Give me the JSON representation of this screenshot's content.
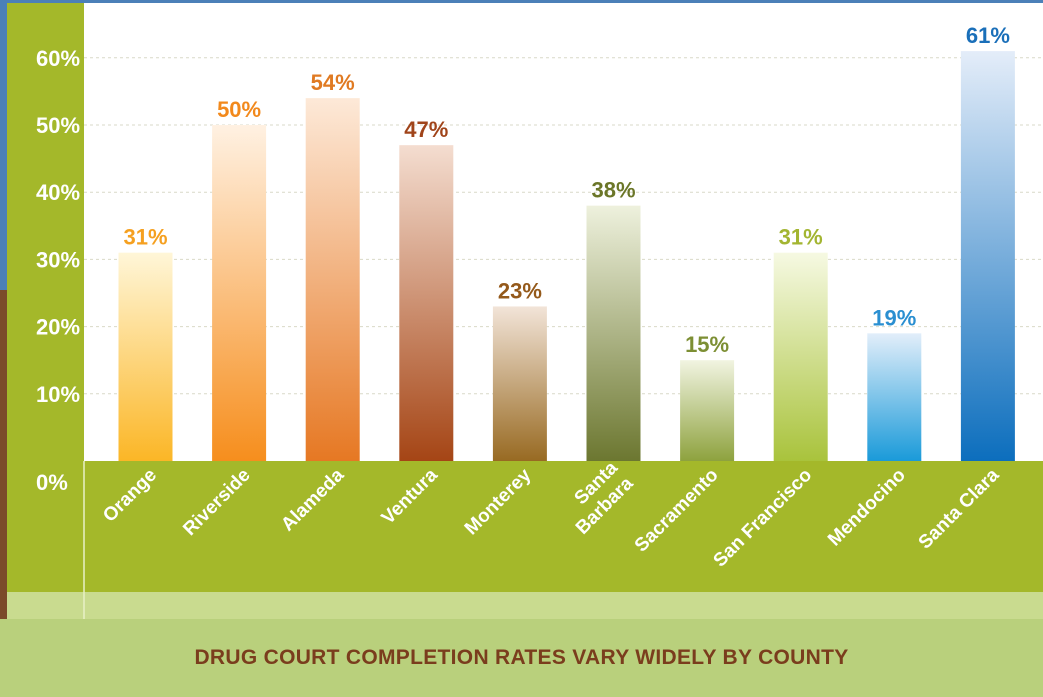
{
  "chart_data": {
    "type": "bar",
    "title": "DRUG COURT COMPLETION RATES VARY WIDELY BY COUNTY",
    "xlabel": "",
    "ylabel": "",
    "ylim": [
      0,
      65
    ],
    "yticks": [
      "0%",
      "10%",
      "20%",
      "30%",
      "40%",
      "50%",
      "60%"
    ],
    "categories": [
      "Orange",
      "Riverside",
      "Alameda",
      "Ventura",
      "Monterey",
      "Santa Barbara",
      "Sacramento",
      "San Francisco",
      "Mendocino",
      "Santa Clara"
    ],
    "values": [
      31,
      50,
      54,
      47,
      23,
      38,
      15,
      31,
      19,
      61
    ],
    "value_labels": [
      "31%",
      "50%",
      "54%",
      "47%",
      "23%",
      "38%",
      "15%",
      "31%",
      "19%",
      "61%"
    ],
    "grid": true,
    "colors": {
      "axis_panel": "#a4b82a",
      "axis_panel_light": "#c9db8f",
      "frame": "#4b80b8",
      "label_colors": [
        "#f5a020",
        "#f2891c",
        "#e07a22",
        "#a0441a",
        "#94591a",
        "#6b7628",
        "#7d8f34",
        "#a3b531",
        "#2a8fd1",
        "#1a6fb9"
      ],
      "bar_top": [
        "#fff6d8",
        "#fff1e2",
        "#fde9d8",
        "#f4ddd0",
        "#f2e4d8",
        "#eef1dd",
        "#f1f4e1",
        "#f6f9e2",
        "#e2eefa",
        "#e4edf9"
      ],
      "bar_bottom": [
        "#fbb626",
        "#f68e1d",
        "#e67823",
        "#a54515",
        "#986a22",
        "#6c7730",
        "#8ea23e",
        "#a9c33c",
        "#1a9ad9",
        "#0c6ebd"
      ]
    }
  }
}
